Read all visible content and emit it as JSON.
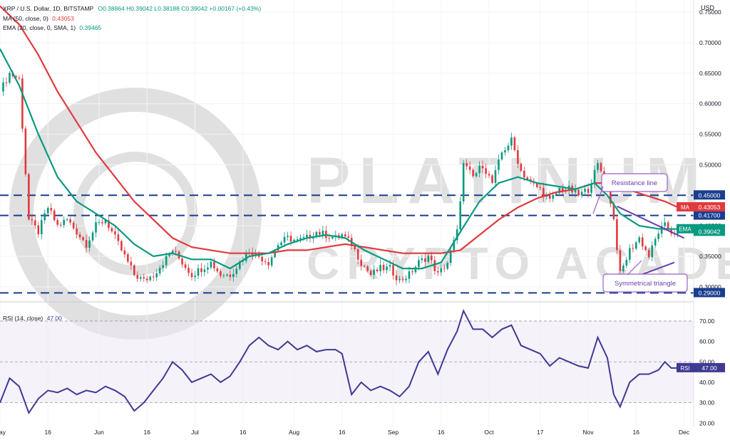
{
  "header": {
    "symbol_line": "XRP / U.S. Dollar, 1D, BITSTAMP",
    "ohlc": "O0.38864 H0.39042 L0.38188 C0.39042 +0.00167 (+0.43%)",
    "ma_label": "MA (50, close, 0)",
    "ma_value": "0.43053",
    "ema_label": "EMA (20, close, 0, SMA, 1)",
    "ema_value": "0.39465",
    "rsi_label": "RSI (14, close)",
    "rsi_value": "47.00"
  },
  "colors": {
    "up": "#089981",
    "down": "#e03a3e",
    "ema": "#089981",
    "ma": "#e03a3e",
    "rsi": "#3f3a94",
    "trendline": "#6a3fb0",
    "level": "#1a3d8f",
    "annotation_border": "#9a5fc8"
  },
  "chart_data": [
    {
      "type": "candlestick",
      "currency_label": "USD",
      "y_ticks": [
        "0.75000",
        "0.70000",
        "0.65000",
        "0.60000",
        "0.55000",
        "0.50000",
        "0.45000",
        "0.40000",
        "0.35000",
        "0.30000"
      ],
      "ylim": [
        0.28,
        0.77
      ],
      "x_tick_labels": [
        "May",
        "16",
        "Jun",
        "16",
        "Jul",
        "16",
        "Aug",
        "16",
        "Sep",
        "16",
        "Oct",
        "17",
        "Nov",
        "16",
        "Dec"
      ],
      "x_tick_days": [
        0,
        15,
        31,
        46,
        61,
        76,
        92,
        107,
        123,
        138,
        153,
        169,
        184,
        199,
        214
      ],
      "horizontal_levels": [
        {
          "label": "0.45000",
          "value": 0.45
        },
        {
          "label": "0.41700",
          "value": 0.417
        },
        {
          "label": "0.29000",
          "value": 0.29
        }
      ],
      "price_tags": [
        {
          "label": "MA",
          "value_label": "0.43053",
          "value": 0.43053
        },
        {
          "label": "EMA",
          "value_label": "0.39465",
          "value": 0.39465
        },
        {
          "label": "",
          "value_label": "0.39042",
          "value": 0.39042
        }
      ],
      "annotations": [
        "Resistance line",
        "Symmetrical triangle"
      ],
      "trendlines": [
        {
          "name": "resistance",
          "from": [
            193,
            0.432
          ],
          "to": [
            214,
            0.38
          ]
        },
        {
          "name": "support",
          "from": [
            193,
            0.305
          ],
          "to": [
            211,
            0.34
          ]
        }
      ],
      "close_path": [
        [
          0,
          0.62
        ],
        [
          3,
          0.65
        ],
        [
          6,
          0.64
        ],
        [
          9,
          0.41
        ],
        [
          12,
          0.39
        ],
        [
          15,
          0.43
        ],
        [
          18,
          0.4
        ],
        [
          21,
          0.41
        ],
        [
          24,
          0.39
        ],
        [
          27,
          0.37
        ],
        [
          30,
          0.4
        ],
        [
          33,
          0.41
        ],
        [
          36,
          0.38
        ],
        [
          39,
          0.35
        ],
        [
          42,
          0.32
        ],
        [
          45,
          0.31
        ],
        [
          48,
          0.32
        ],
        [
          51,
          0.34
        ],
        [
          54,
          0.36
        ],
        [
          57,
          0.34
        ],
        [
          60,
          0.32
        ],
        [
          63,
          0.33
        ],
        [
          66,
          0.34
        ],
        [
          69,
          0.32
        ],
        [
          72,
          0.32
        ],
        [
          75,
          0.34
        ],
        [
          78,
          0.36
        ],
        [
          81,
          0.35
        ],
        [
          84,
          0.34
        ],
        [
          87,
          0.37
        ],
        [
          90,
          0.38
        ],
        [
          93,
          0.375
        ],
        [
          96,
          0.38
        ],
        [
          99,
          0.39
        ],
        [
          102,
          0.385
        ],
        [
          105,
          0.38
        ],
        [
          107,
          0.385
        ],
        [
          110,
          0.37
        ],
        [
          113,
          0.34
        ],
        [
          116,
          0.32
        ],
        [
          119,
          0.33
        ],
        [
          122,
          0.33
        ],
        [
          125,
          0.31
        ],
        [
          128,
          0.32
        ],
        [
          131,
          0.34
        ],
        [
          134,
          0.35
        ],
        [
          137,
          0.32
        ],
        [
          140,
          0.34
        ],
        [
          143,
          0.39
        ],
        [
          145,
          0.5
        ],
        [
          148,
          0.48
        ],
        [
          151,
          0.5
        ],
        [
          154,
          0.47
        ],
        [
          157,
          0.52
        ],
        [
          160,
          0.54
        ],
        [
          163,
          0.49
        ],
        [
          166,
          0.47
        ],
        [
          169,
          0.46
        ],
        [
          172,
          0.44
        ],
        [
          175,
          0.46
        ],
        [
          178,
          0.46
        ],
        [
          181,
          0.45
        ],
        [
          184,
          0.46
        ],
        [
          187,
          0.5
        ],
        [
          190,
          0.47
        ],
        [
          192,
          0.41
        ],
        [
          194,
          0.32
        ],
        [
          197,
          0.36
        ],
        [
          200,
          0.38
        ],
        [
          203,
          0.35
        ],
        [
          206,
          0.39
        ],
        [
          208,
          0.4
        ],
        [
          210,
          0.39
        ],
        [
          212,
          0.39042
        ]
      ],
      "indicators": {
        "ema20": {
          "name": "EMA",
          "points": [
            [
              0,
              0.69
            ],
            [
              6,
              0.63
            ],
            [
              12,
              0.55
            ],
            [
              18,
              0.48
            ],
            [
              24,
              0.44
            ],
            [
              30,
              0.42
            ],
            [
              36,
              0.4
            ],
            [
              42,
              0.37
            ],
            [
              48,
              0.35
            ],
            [
              54,
              0.355
            ],
            [
              60,
              0.345
            ],
            [
              66,
              0.345
            ],
            [
              72,
              0.33
            ],
            [
              78,
              0.35
            ],
            [
              84,
              0.355
            ],
            [
              90,
              0.37
            ],
            [
              96,
              0.38
            ],
            [
              102,
              0.385
            ],
            [
              108,
              0.38
            ],
            [
              114,
              0.36
            ],
            [
              120,
              0.345
            ],
            [
              126,
              0.33
            ],
            [
              132,
              0.33
            ],
            [
              138,
              0.34
            ],
            [
              144,
              0.39
            ],
            [
              150,
              0.44
            ],
            [
              156,
              0.47
            ],
            [
              162,
              0.48
            ],
            [
              168,
              0.47
            ],
            [
              174,
              0.465
            ],
            [
              180,
              0.46
            ],
            [
              186,
              0.47
            ],
            [
              190,
              0.45
            ],
            [
              194,
              0.42
            ],
            [
              200,
              0.4
            ],
            [
              206,
              0.395
            ],
            [
              212,
              0.39465
            ]
          ]
        },
        "ma50": {
          "name": "MA",
          "points": [
            [
              0,
              0.76
            ],
            [
              6,
              0.73
            ],
            [
              12,
              0.68
            ],
            [
              18,
              0.62
            ],
            [
              24,
              0.57
            ],
            [
              30,
              0.52
            ],
            [
              36,
              0.48
            ],
            [
              42,
              0.44
            ],
            [
              48,
              0.41
            ],
            [
              54,
              0.38
            ],
            [
              60,
              0.365
            ],
            [
              66,
              0.36
            ],
            [
              72,
              0.355
            ],
            [
              78,
              0.355
            ],
            [
              84,
              0.355
            ],
            [
              90,
              0.36
            ],
            [
              96,
              0.36
            ],
            [
              102,
              0.365
            ],
            [
              108,
              0.37
            ],
            [
              114,
              0.365
            ],
            [
              120,
              0.36
            ],
            [
              126,
              0.355
            ],
            [
              132,
              0.355
            ],
            [
              138,
              0.355
            ],
            [
              144,
              0.36
            ],
            [
              150,
              0.385
            ],
            [
              156,
              0.41
            ],
            [
              162,
              0.43
            ],
            [
              168,
              0.445
            ],
            [
              174,
              0.455
            ],
            [
              180,
              0.46
            ],
            [
              186,
              0.47
            ],
            [
              190,
              0.47
            ],
            [
              196,
              0.46
            ],
            [
              202,
              0.45
            ],
            [
              208,
              0.44
            ],
            [
              212,
              0.43053
            ]
          ]
        }
      }
    },
    {
      "type": "line",
      "title": "RSI (14, close)",
      "y_ticks": [
        "70.00",
        "60.00",
        "50.00",
        "40.00",
        "30.00",
        "20.00"
      ],
      "ylim": [
        18,
        78
      ],
      "band": [
        30,
        70
      ],
      "midline": 50,
      "last_label": "RSI",
      "last_value_label": "47.00",
      "series": [
        {
          "name": "RSI",
          "points": [
            [
              0,
              30
            ],
            [
              3,
              42
            ],
            [
              6,
              38
            ],
            [
              9,
              25
            ],
            [
              12,
              32
            ],
            [
              15,
              36
            ],
            [
              18,
              35
            ],
            [
              21,
              37
            ],
            [
              24,
              34
            ],
            [
              27,
              36
            ],
            [
              30,
              35
            ],
            [
              33,
              38
            ],
            [
              36,
              36
            ],
            [
              39,
              33
            ],
            [
              42,
              26
            ],
            [
              45,
              30
            ],
            [
              48,
              36
            ],
            [
              51,
              42
            ],
            [
              54,
              50
            ],
            [
              57,
              46
            ],
            [
              60,
              40
            ],
            [
              63,
              42
            ],
            [
              66,
              44
            ],
            [
              69,
              40
            ],
            [
              72,
              43
            ],
            [
              75,
              50
            ],
            [
              78,
              58
            ],
            [
              81,
              62
            ],
            [
              84,
              58
            ],
            [
              87,
              56
            ],
            [
              90,
              60
            ],
            [
              93,
              56
            ],
            [
              96,
              58
            ],
            [
              99,
              55
            ],
            [
              102,
              56
            ],
            [
              105,
              56
            ],
            [
              107,
              54
            ],
            [
              110,
              34
            ],
            [
              113,
              40
            ],
            [
              116,
              36
            ],
            [
              119,
              38
            ],
            [
              122,
              36
            ],
            [
              125,
              33
            ],
            [
              128,
              38
            ],
            [
              131,
              50
            ],
            [
              134,
              55
            ],
            [
              137,
              44
            ],
            [
              140,
              56
            ],
            [
              143,
              65
            ],
            [
              145,
              75
            ],
            [
              148,
              66
            ],
            [
              151,
              66
            ],
            [
              154,
              62
            ],
            [
              157,
              66
            ],
            [
              160,
              68
            ],
            [
              163,
              58
            ],
            [
              166,
              56
            ],
            [
              169,
              54
            ],
            [
              172,
              48
            ],
            [
              175,
              52
            ],
            [
              178,
              50
            ],
            [
              181,
              48
            ],
            [
              184,
              47
            ],
            [
              187,
              62
            ],
            [
              190,
              52
            ],
            [
              192,
              34
            ],
            [
              194,
              28
            ],
            [
              197,
              40
            ],
            [
              200,
              44
            ],
            [
              203,
              44
            ],
            [
              206,
              46
            ],
            [
              208,
              50
            ],
            [
              210,
              47
            ],
            [
              212,
              47
            ]
          ]
        }
      ]
    }
  ]
}
